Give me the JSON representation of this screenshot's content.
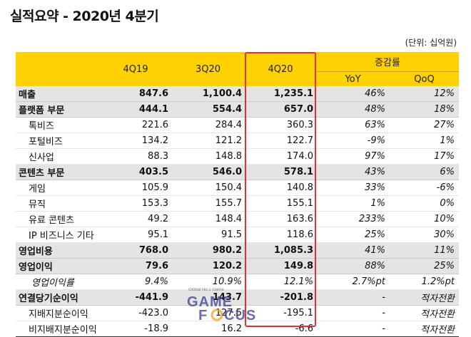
{
  "title": "실적요약 - 2020년 4분기",
  "unit": "(단위: 십억원)",
  "header": {
    "col_4q19": "4Q19",
    "col_3q20": "3Q20",
    "col_4q20": "4Q20",
    "growth": "증감률",
    "yoy": "YoY",
    "qoq": "QoQ"
  },
  "rows": [
    {
      "label": "매출",
      "q419": "847.6",
      "q320": "1,100.4",
      "q420": "1,235.1",
      "yoy": "46%",
      "qoq": "12%"
    },
    {
      "label": "플랫폼 부문",
      "q419": "444.1",
      "q320": "554.4",
      "q420": "657.0",
      "yoy": "48%",
      "qoq": "18%"
    },
    {
      "label": "톡비즈",
      "q419": "221.6",
      "q320": "284.4",
      "q420": "360.3",
      "yoy": "63%",
      "qoq": "27%"
    },
    {
      "label": "포털비즈",
      "q419": "134.2",
      "q320": "121.2",
      "q420": "122.7",
      "yoy": "-9%",
      "qoq": "1%"
    },
    {
      "label": "신사업",
      "q419": "88.3",
      "q320": "148.8",
      "q420": "174.0",
      "yoy": "97%",
      "qoq": "17%"
    },
    {
      "label": "콘텐츠 부문",
      "q419": "403.5",
      "q320": "546.0",
      "q420": "578.1",
      "yoy": "43%",
      "qoq": "6%"
    },
    {
      "label": "게임",
      "q419": "105.9",
      "q320": "150.4",
      "q420": "140.8",
      "yoy": "33%",
      "qoq": "-6%"
    },
    {
      "label": "뮤직",
      "q419": "153.3",
      "q320": "155.7",
      "q420": "155.1",
      "yoy": "1%",
      "qoq": "0%"
    },
    {
      "label": "유료 콘텐츠",
      "q419": "49.2",
      "q320": "148.4",
      "q420": "163.6",
      "yoy": "233%",
      "qoq": "10%"
    },
    {
      "label": "IP 비즈니스 기타",
      "q419": "95.1",
      "q320": "91.5",
      "q420": "118.6",
      "yoy": "25%",
      "qoq": "30%"
    },
    {
      "label": "영업비용",
      "q419": "768.0",
      "q320": "980.2",
      "q420": "1,085.3",
      "yoy": "41%",
      "qoq": "11%"
    },
    {
      "label": "영업이익",
      "q419": "79.6",
      "q320": "120.2",
      "q420": "149.8",
      "yoy": "88%",
      "qoq": "25%"
    },
    {
      "label": "영업이익률",
      "q419": "9.4%",
      "q320": "10.9%",
      "q420": "12.1%",
      "yoy": "2.7%pt",
      "qoq": "1.2%pt"
    },
    {
      "label": "연결당기순이익",
      "q419": "-441.9",
      "q320": "143.7",
      "q420": "-201.8",
      "yoy": "-",
      "qoq": "적자전환"
    },
    {
      "label": "지배지분순이익",
      "q419": "-423.0",
      "q320": "127.5",
      "q420": "-195.1",
      "yoy": "-",
      "qoq": "적자전환"
    },
    {
      "label": "비지배지분순이익",
      "q419": "-18.9",
      "q320": "16.2",
      "q420": "-6.6",
      "yoy": "-",
      "qoq": "적자전환"
    }
  ],
  "watermark": {
    "top": "Global No.1 Game",
    "brand": "GAME FOCUS"
  }
}
